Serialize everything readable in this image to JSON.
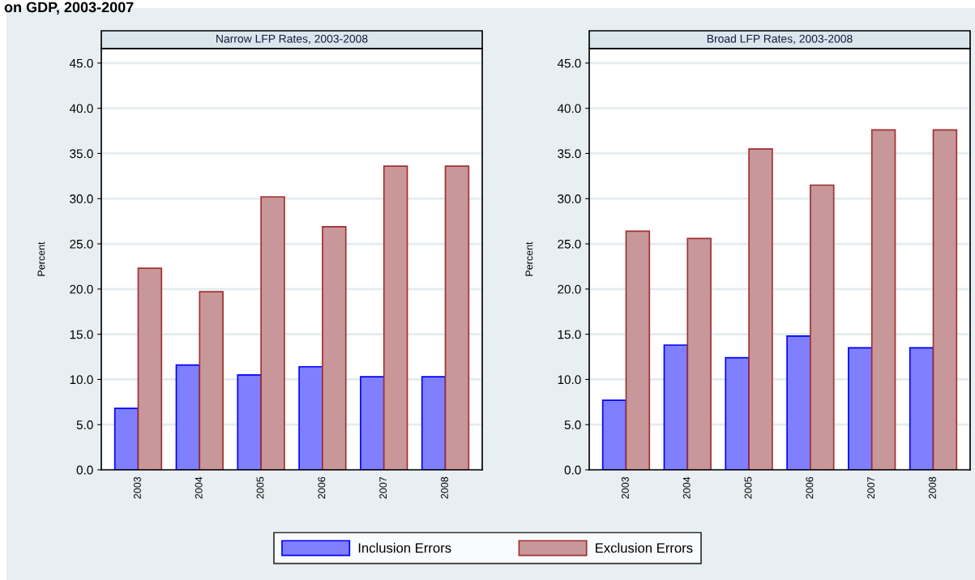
{
  "chart_data": [
    {
      "type": "bar",
      "title": "Narrow LFP Rates, 2003-2008",
      "ylabel": "Percent",
      "annotations": [
        "on GDP, 2003-2007"
      ],
      "categories": [
        "2003",
        "2004",
        "2005",
        "2006",
        "2007",
        "2008"
      ],
      "series": [
        {
          "name": "Inclusion Errors",
          "color": "#8080ff",
          "values": [
            6.8,
            11.6,
            10.5,
            11.4,
            10.3,
            10.3
          ]
        },
        {
          "name": "Exclusion Errors",
          "color": "#c89799",
          "values": [
            22.3,
            19.7,
            30.2,
            26.9,
            33.6,
            33.6
          ]
        }
      ],
      "ylim": [
        0,
        46.6
      ],
      "yticks": [
        {
          "value": 0,
          "label": "0.0"
        },
        {
          "value": 5,
          "label": "5.0"
        },
        {
          "value": 10,
          "label": "10.0"
        },
        {
          "value": 15,
          "label": "15.0"
        },
        {
          "value": 20,
          "label": "20.0"
        },
        {
          "value": 25,
          "label": "25.0"
        },
        {
          "value": 30,
          "label": "30.0"
        },
        {
          "value": 35,
          "label": "35.0"
        },
        {
          "value": 40,
          "label": "40.0"
        },
        {
          "value": 45,
          "label": "45.0"
        }
      ],
      "grid": "y",
      "legend": "bottom"
    },
    {
      "type": "bar",
      "title": "Broad LFP Rates, 2003-2008",
      "ylabel": "Percent",
      "categories": [
        "2003",
        "2004",
        "2005",
        "2006",
        "2007",
        "2008"
      ],
      "series": [
        {
          "color": "#8080ff",
          "values": [
            7.7,
            13.8,
            12.4,
            14.8,
            13.5,
            13.5
          ]
        },
        {
          "color": "#c89799",
          "values": [
            26.4,
            25.6,
            35.5,
            31.5,
            37.6,
            37.6
          ]
        }
      ],
      "ylim": [
        0,
        46.6
      ],
      "yticks": [
        {
          "value": 0,
          "label": "0.0"
        },
        {
          "value": 5,
          "label": "5.0"
        },
        {
          "value": 10,
          "label": "10.0"
        },
        {
          "value": 15,
          "label": "15.0"
        },
        {
          "value": 20,
          "label": "20.0"
        },
        {
          "value": 25,
          "label": "25.0"
        },
        {
          "value": 30,
          "label": "30.0"
        },
        {
          "value": 35,
          "label": "35.0"
        },
        {
          "value": 40,
          "label": "40.0"
        },
        {
          "value": 45,
          "label": "45.0"
        }
      ],
      "grid": "y"
    }
  ]
}
